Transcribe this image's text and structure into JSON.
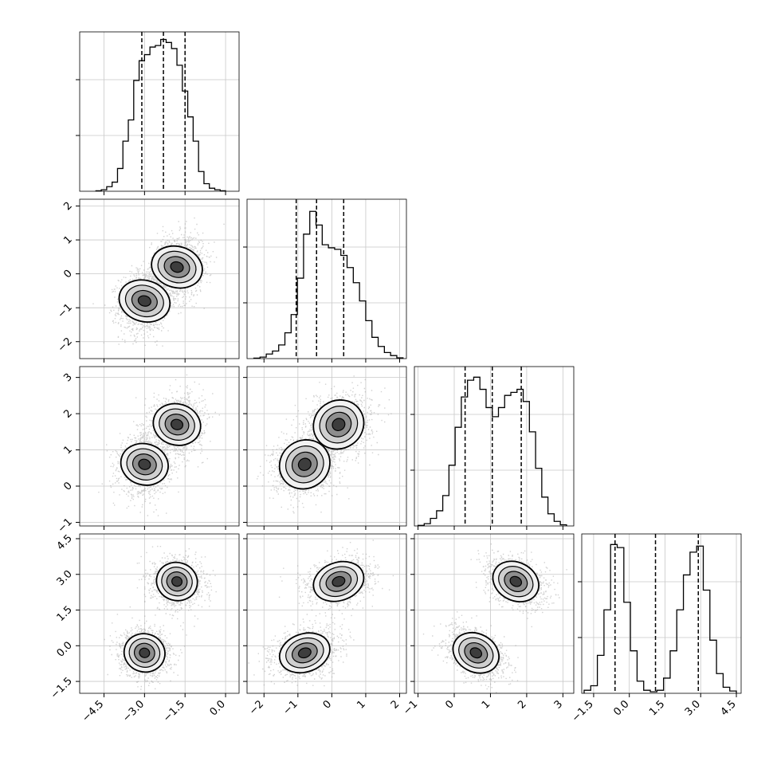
{
  "chart_data": {
    "type": "corner",
    "grid": true,
    "parameters": [
      {
        "xlim": [
          -5.4,
          0.5
        ],
        "ylim": [
          -2.5,
          2.2
        ],
        "ticks": [
          -4.5,
          -3.0,
          -1.5,
          0.0
        ],
        "tick_labels": [
          "−4.5",
          "−3.0",
          "−1.5",
          "0.0"
        ],
        "quantiles": [
          -3.1,
          -2.3,
          -1.5
        ],
        "hist": [
          0.003,
          0.01,
          0.03,
          0.06,
          0.15,
          0.33,
          0.47,
          0.73,
          0.86,
          0.9,
          0.95,
          0.96,
          1.0,
          0.98,
          0.94,
          0.83,
          0.66,
          0.49,
          0.33,
          0.13,
          0.05,
          0.02,
          0.01,
          0.003
        ],
        "hist_range": [
          -4.8,
          0.0
        ],
        "modes": [
          [
            -3.0,
            -0.8,
            0.6,
            -0.3
          ],
          [
            -1.8,
            0.2,
            1.7,
            2.7
          ]
        ]
      },
      {
        "xlim": [
          -2.5,
          2.2
        ],
        "ylim": [
          -1.1,
          3.3
        ],
        "ticks": [
          -2,
          -1,
          0,
          1,
          2
        ],
        "tick_labels": [
          "−2",
          "−1",
          "0",
          "1",
          "2"
        ],
        "quantiles": [
          -1.05,
          -0.45,
          0.35
        ],
        "hist": [
          0.003,
          0.01,
          0.03,
          0.05,
          0.09,
          0.17,
          0.29,
          0.53,
          0.82,
          0.97,
          0.88,
          0.75,
          0.73,
          0.72,
          0.68,
          0.6,
          0.5,
          0.38,
          0.25,
          0.14,
          0.08,
          0.04,
          0.02,
          0.005
        ],
        "hist_range": [
          -2.3,
          2.1
        ]
      },
      {
        "xlim": [
          -1.1,
          3.3
        ],
        "ylim": [
          -2.0,
          4.7
        ],
        "ticks": [
          -1,
          0,
          1,
          2,
          3
        ],
        "tick_labels": [
          "−1",
          "0",
          "1",
          "2",
          "3"
        ],
        "quantiles": [
          0.3,
          1.05,
          1.85
        ],
        "hist": [
          0.004,
          0.015,
          0.05,
          0.1,
          0.2,
          0.4,
          0.65,
          0.85,
          0.96,
          0.98,
          0.9,
          0.78,
          0.72,
          0.78,
          0.86,
          0.88,
          0.9,
          0.82,
          0.62,
          0.38,
          0.19,
          0.08,
          0.03,
          0.008
        ],
        "hist_range": [
          -1.0,
          3.1
        ]
      },
      {
        "xlim": [
          -2.0,
          4.7
        ],
        "ticks": [
          -1.5,
          0.0,
          1.5,
          3.0,
          4.5
        ],
        "tick_labels": [
          "−1.5",
          "0.0",
          "1.5",
          "3.0",
          "4.5"
        ],
        "quantiles": [
          -0.6,
          1.1,
          2.9
        ],
        "hist": [
          0.02,
          0.05,
          0.25,
          0.55,
          0.98,
          0.96,
          0.6,
          0.28,
          0.08,
          0.02,
          0.01,
          0.02,
          0.1,
          0.28,
          0.55,
          0.78,
          0.93,
          0.97,
          0.68,
          0.35,
          0.13,
          0.04,
          0.015
        ],
        "hist_range": [
          -1.9,
          4.5
        ]
      }
    ],
    "pair_ticks": {
      "y_row1": [
        -2,
        -1,
        0,
        1,
        2
      ],
      "y_row1_labels": [
        "−2",
        "−1",
        "0",
        "1",
        "2"
      ],
      "y_row2": [
        -1,
        0,
        1,
        2,
        3
      ],
      "y_row2_labels": [
        "−1",
        "0",
        "1",
        "2",
        "3"
      ],
      "y_row3": [
        -1.5,
        0.0,
        1.5,
        3.0,
        4.5
      ],
      "y_row3_labels": [
        "−1.5",
        "0.0",
        "1.5",
        "3.0",
        "4.5"
      ]
    }
  }
}
